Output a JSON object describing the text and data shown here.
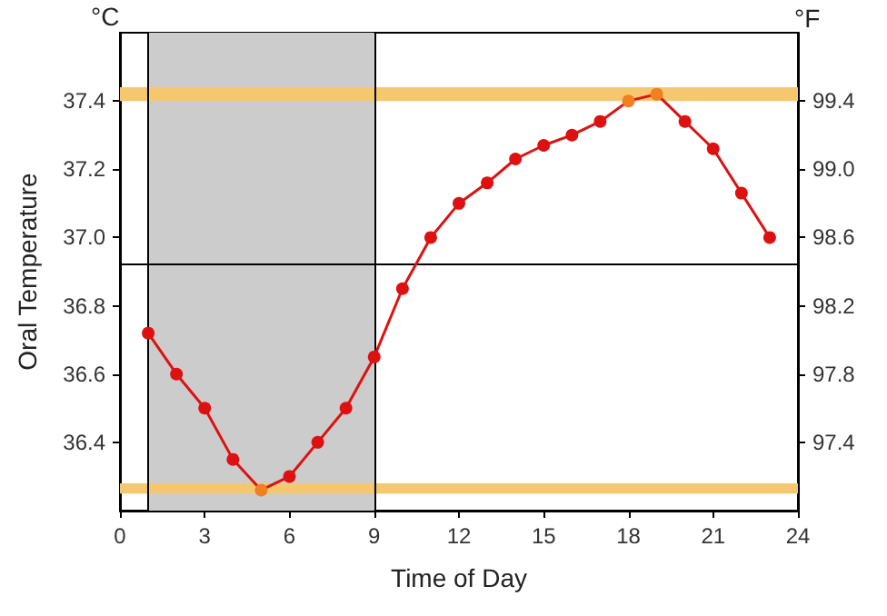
{
  "chart_data": {
    "type": "line",
    "xlabel": "Time of Day",
    "ylabel": "Oral Temperature",
    "y2label": "°F",
    "annotations": [
      "°C"
    ],
    "x": [
      1,
      2,
      3,
      4,
      5,
      6,
      7,
      8,
      9,
      10,
      11,
      12,
      13,
      14,
      15,
      16,
      17,
      18,
      19,
      20,
      21,
      22,
      23
    ],
    "series": [
      {
        "color": "#dd1111",
        "colors": [
          "#dd1111",
          "#dd1111",
          "#dd1111",
          "#dd1111",
          "#f08020",
          "#dd1111",
          "#dd1111",
          "#dd1111",
          "#dd1111",
          "#dd1111",
          "#dd1111",
          "#dd1111",
          "#dd1111",
          "#dd1111",
          "#dd1111",
          "#dd1111",
          "#dd1111",
          "#f08020",
          "#f08020",
          "#dd1111",
          "#dd1111",
          "#dd1111",
          "#dd1111"
        ],
        "values": [
          36.72,
          36.6,
          36.5,
          36.35,
          36.26,
          36.3,
          36.4,
          36.5,
          36.65,
          36.85,
          37.0,
          37.1,
          37.16,
          37.23,
          37.27,
          37.3,
          37.34,
          37.4,
          37.42,
          37.34,
          37.26,
          37.13,
          37.0
        ]
      }
    ],
    "xlim": [
      0,
      24
    ],
    "xticks": [
      0,
      3,
      6,
      9,
      12,
      15,
      18,
      21,
      24
    ],
    "ylim": [
      36.2,
      37.6
    ],
    "yticks": [
      36.4,
      36.6,
      36.8,
      {
        "value": 37,
        "label": "37.0"
      },
      37.2,
      37.4
    ],
    "y2lim": [
      97.0,
      99.8
    ],
    "y2ticks": [
      97.4,
      97.8,
      98.2,
      98.6,
      {
        "value": 99,
        "label": "99.0"
      },
      99.4
    ],
    "bands": [
      {
        "axis": "x",
        "from": 1,
        "to": 9,
        "color": "#cccccc"
      },
      {
        "axis": "y",
        "from": 37.4,
        "to": 37.44,
        "color": "#f5c870"
      },
      {
        "axis": "y",
        "from": 36.25,
        "to": 36.28,
        "color": "#f5c870"
      }
    ],
    "ref_lines": [
      {
        "axis": "x",
        "value": 1,
        "color": "#000000"
      },
      {
        "axis": "x",
        "value": 9,
        "color": "#000000"
      },
      {
        "axis": "y",
        "value": 36.92,
        "color": "#000000"
      }
    ],
    "marker": "circle",
    "line_style": "solid"
  }
}
